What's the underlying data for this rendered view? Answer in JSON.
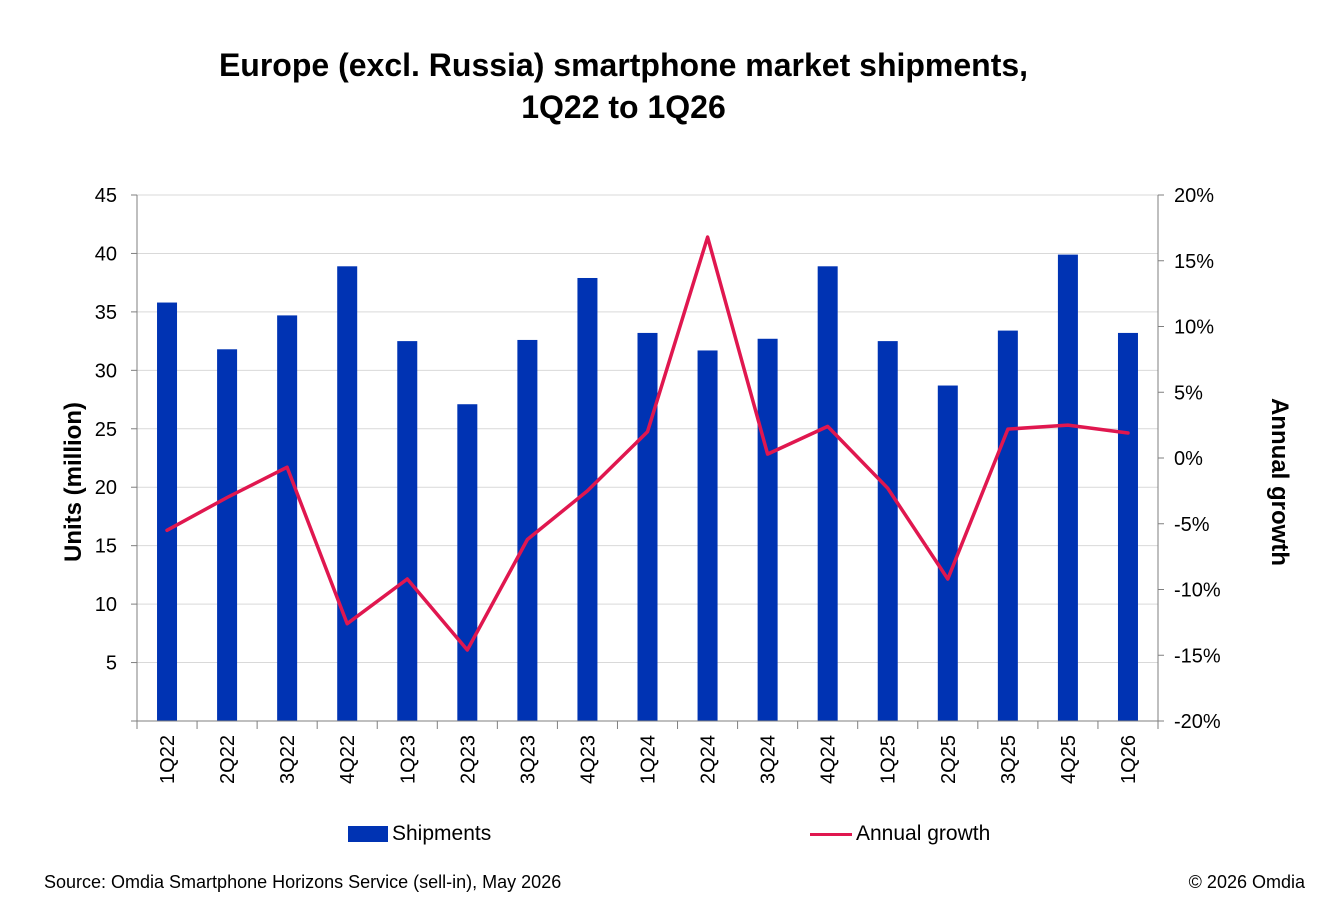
{
  "title_line1": "Europe (excl. Russia) smartphone market shipments,",
  "title_line2": "1Q22 to 1Q26",
  "source": "Source: Omdia Smartphone Horizons Service (sell-in), May 2026",
  "copyright": "© 2026 Omdia",
  "colors": {
    "bar": "#0033b3",
    "line": "#e0174f",
    "grid": "#d9d9d9",
    "axis": "#7f7f7f"
  },
  "chart_data": {
    "type": "bar",
    "categories": [
      "1Q22",
      "2Q22",
      "3Q22",
      "4Q22",
      "1Q23",
      "2Q23",
      "3Q23",
      "4Q23",
      "1Q24",
      "2Q24",
      "3Q24",
      "4Q24",
      "1Q25",
      "2Q25",
      "3Q25",
      "4Q25",
      "1Q26"
    ],
    "series": [
      {
        "name": "Shipments",
        "type": "bar",
        "axis": "left",
        "values": [
          35.8,
          31.8,
          34.7,
          38.9,
          32.5,
          27.1,
          32.6,
          37.9,
          33.2,
          31.7,
          32.7,
          38.9,
          32.5,
          28.7,
          33.4,
          39.9,
          33.2
        ]
      },
      {
        "name": "Annual growth",
        "type": "line",
        "axis": "right",
        "values": [
          -5.5,
          -3.0,
          -0.7,
          -12.6,
          -9.2,
          -14.6,
          -6.2,
          -2.5,
          2.0,
          16.8,
          0.3,
          2.4,
          -2.3,
          -9.2,
          2.2,
          2.5,
          1.9
        ]
      }
    ],
    "ylabel": "Units (million)",
    "y2label": "Annual growth",
    "ylim": [
      0,
      45
    ],
    "yticks": [
      5,
      10,
      15,
      20,
      25,
      30,
      35,
      40,
      45
    ],
    "y2lim": [
      -20,
      20
    ],
    "y2ticks": [
      "-20%",
      "-15%",
      "-10%",
      "-5%",
      "0%",
      "5%",
      "10%",
      "15%",
      "20%"
    ],
    "grid": true,
    "legend": "bottom"
  }
}
